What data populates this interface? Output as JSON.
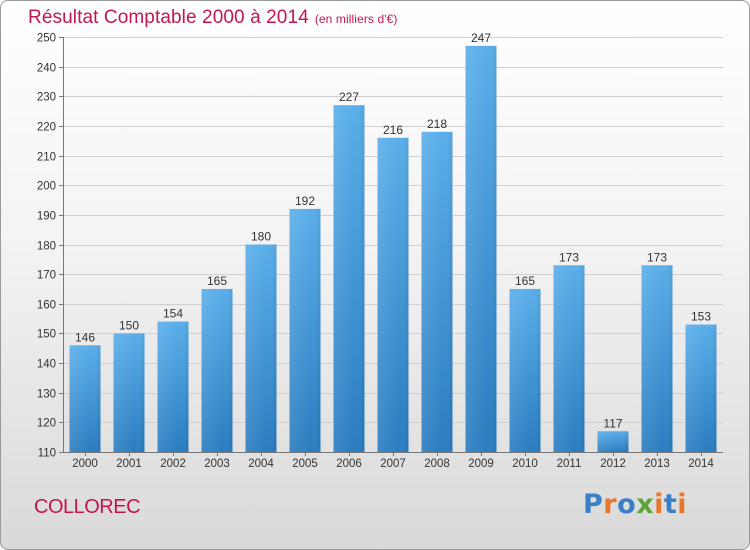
{
  "header": {
    "title": "Résultat Comptable 2000 à 2014",
    "subtitle": "(en milliers d'€)"
  },
  "footer": {
    "place": "COLLOREC",
    "brand": "Proxiti",
    "brand_colors": [
      "#3a7fc8",
      "#e8762b",
      "#3a7fc8",
      "#5aa63a",
      "#e8762b",
      "#3a7fc8",
      "#e8762b"
    ]
  },
  "colors": {
    "accent": "#c4164e",
    "bar_top": "#5aaeea",
    "bar_bottom": "#2a7cc0",
    "grid": "#d0d0d0",
    "axis_text": "#333333"
  },
  "chart_data": {
    "type": "bar",
    "categories": [
      "2000",
      "2001",
      "2002",
      "2003",
      "2004",
      "2005",
      "2006",
      "2007",
      "2008",
      "2009",
      "2010",
      "2011",
      "2012",
      "2013",
      "2014"
    ],
    "values": [
      146,
      150,
      154,
      165,
      180,
      192,
      227,
      216,
      218,
      247,
      165,
      173,
      117,
      173,
      153
    ],
    "ylim": [
      110,
      250
    ],
    "yticks": [
      110,
      120,
      130,
      140,
      150,
      160,
      170,
      180,
      190,
      200,
      210,
      220,
      230,
      240,
      250
    ],
    "grid": true,
    "xlabel": "",
    "ylabel": ""
  }
}
